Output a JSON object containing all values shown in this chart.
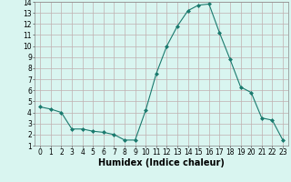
{
  "x": [
    0,
    1,
    2,
    3,
    4,
    5,
    6,
    7,
    8,
    9,
    10,
    11,
    12,
    13,
    14,
    15,
    16,
    17,
    18,
    19,
    20,
    21,
    22,
    23
  ],
  "y": [
    4.5,
    4.3,
    4.0,
    2.5,
    2.5,
    2.3,
    2.2,
    2.0,
    1.5,
    1.5,
    4.2,
    7.5,
    10.0,
    11.8,
    13.2,
    13.7,
    13.8,
    11.2,
    8.8,
    6.3,
    5.8,
    3.5,
    3.3,
    1.5
  ],
  "line_color": "#1a7a6e",
  "marker": "D",
  "marker_size": 2,
  "bg_color": "#d9f5f0",
  "grid_color": "#c0b0b0",
  "xlabel": "Humidex (Indice chaleur)",
  "xlim": [
    -0.5,
    23.5
  ],
  "ylim": [
    1,
    14
  ],
  "yticks": [
    1,
    2,
    3,
    4,
    5,
    6,
    7,
    8,
    9,
    10,
    11,
    12,
    13,
    14
  ],
  "xticks": [
    0,
    1,
    2,
    3,
    4,
    5,
    6,
    7,
    8,
    9,
    10,
    11,
    12,
    13,
    14,
    15,
    16,
    17,
    18,
    19,
    20,
    21,
    22,
    23
  ],
  "tick_fontsize": 5.5,
  "xlabel_fontsize": 7
}
